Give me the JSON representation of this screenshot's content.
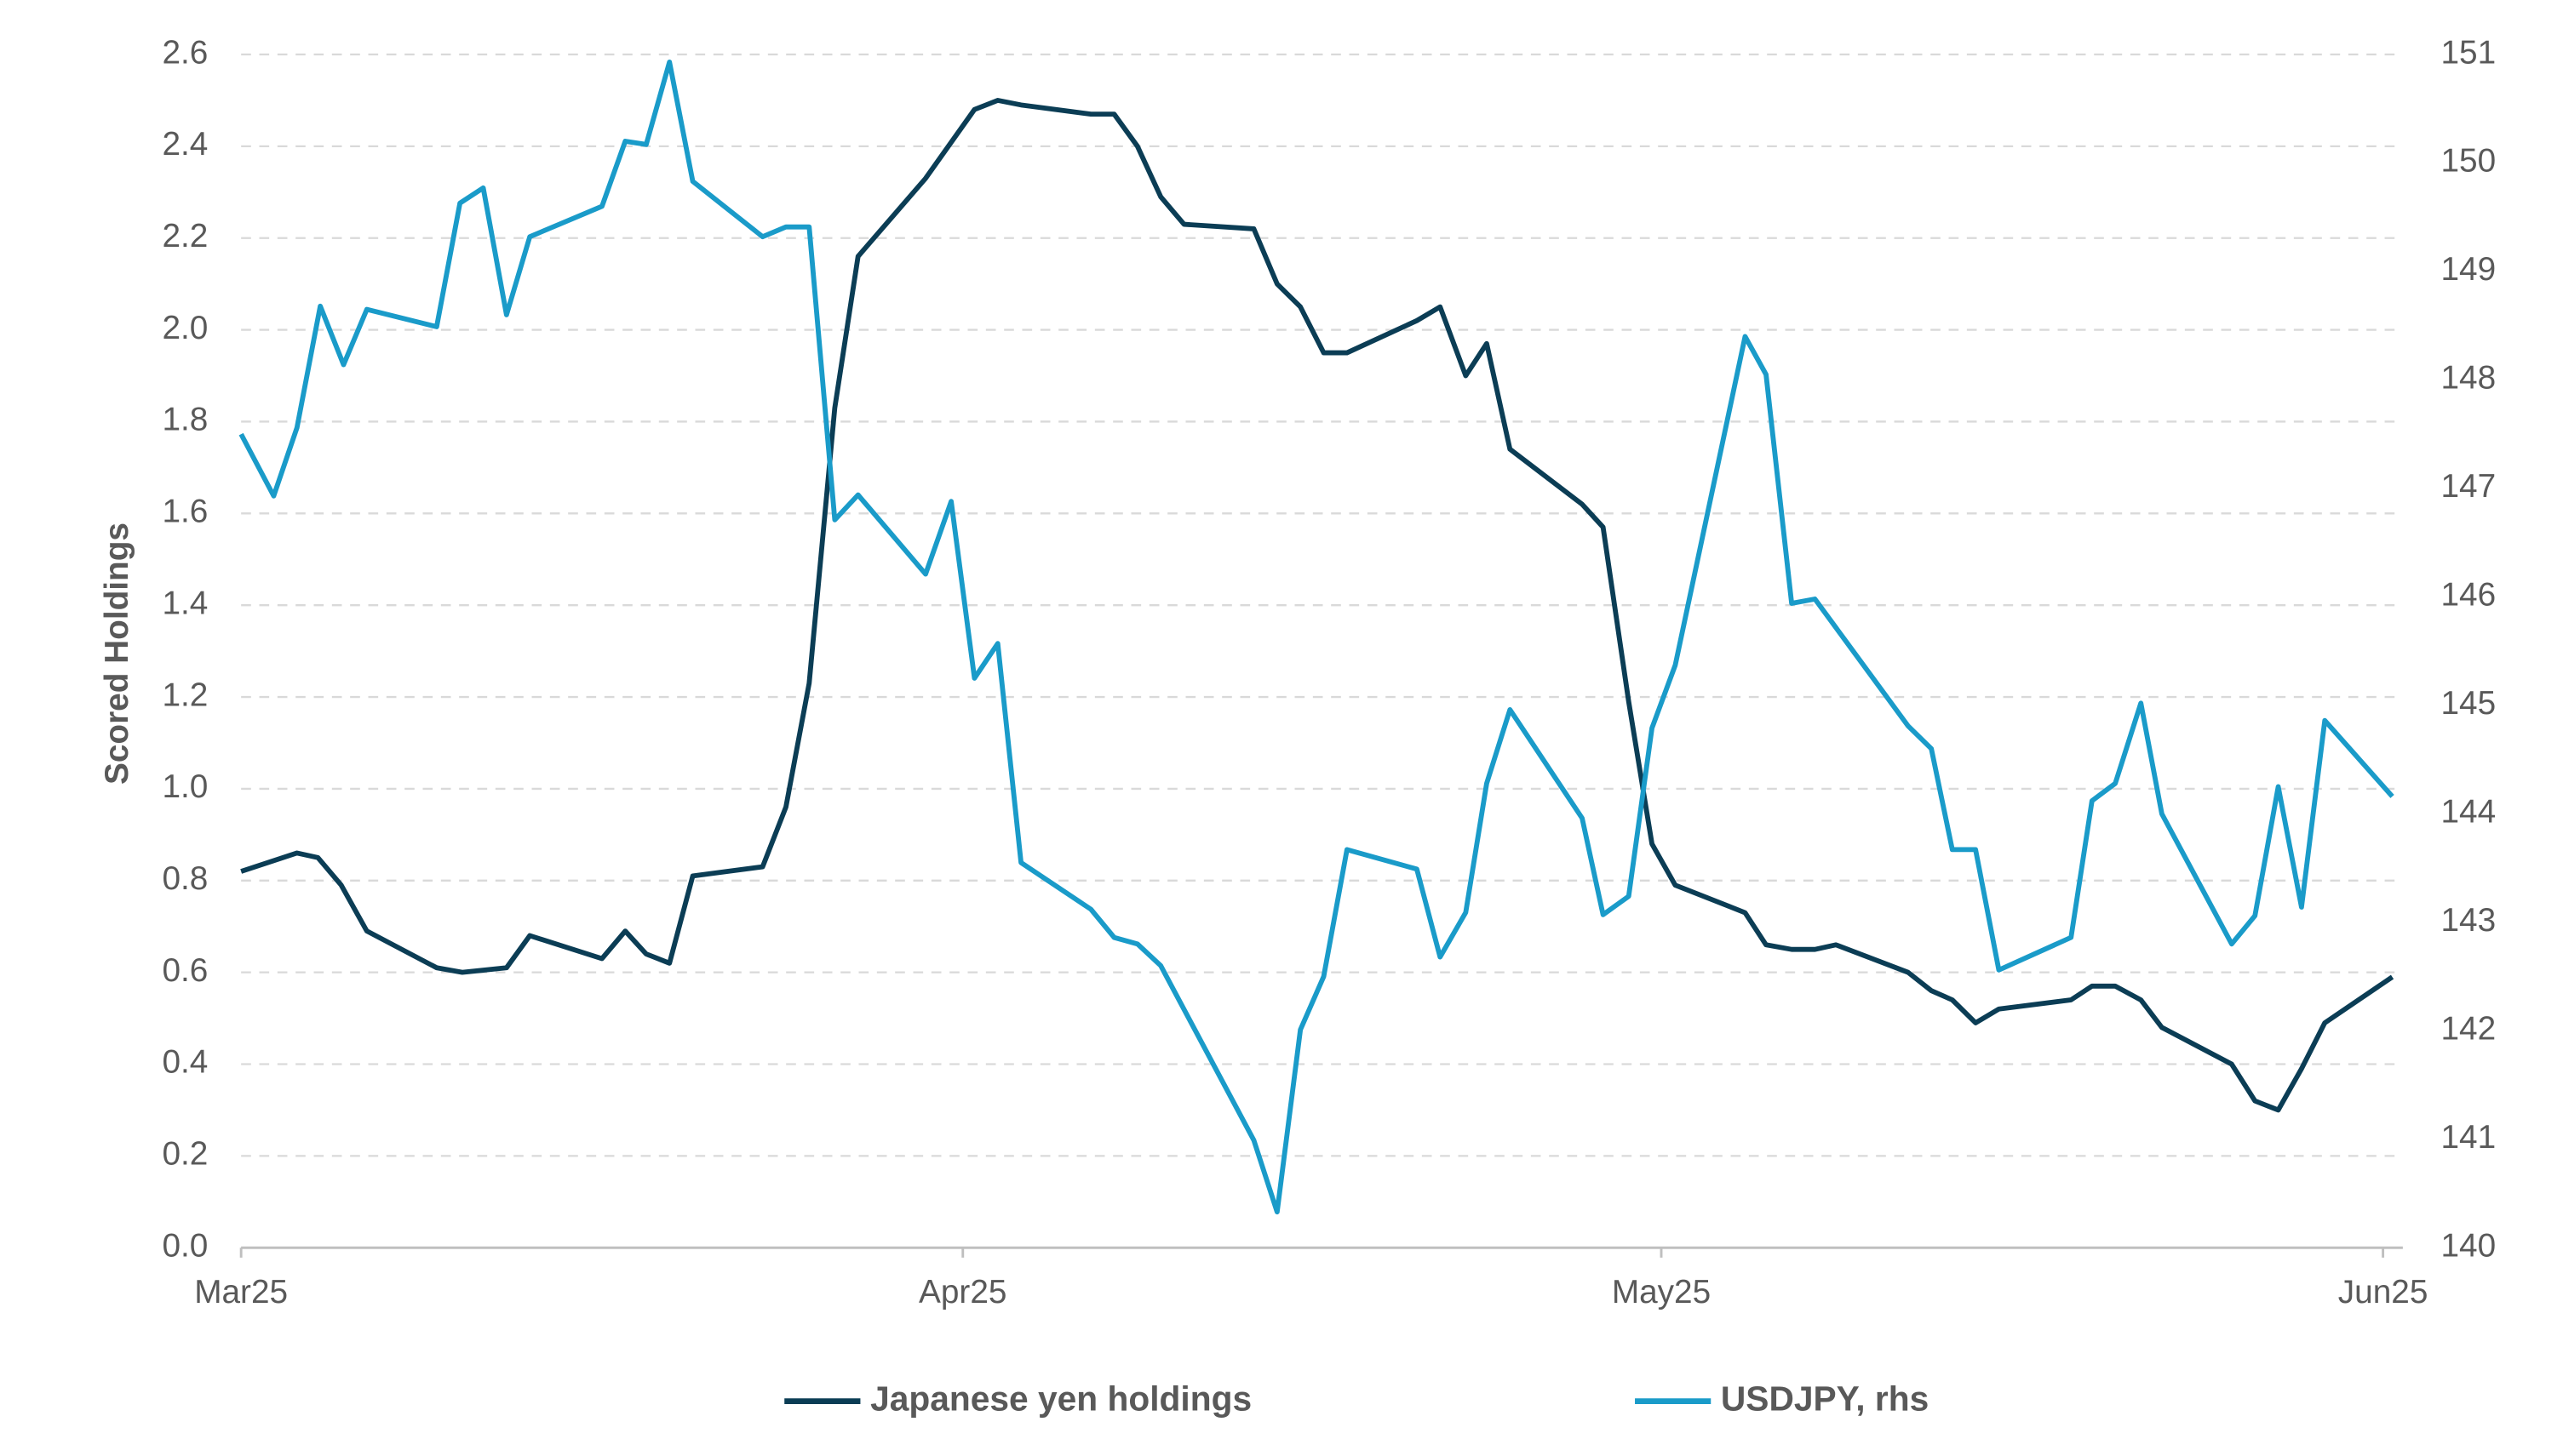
{
  "chart_data": {
    "type": "line",
    "y_label": "Scored Holdings",
    "xlim": [
      0,
      92
    ],
    "xticks": [
      {
        "value": 0,
        "label": "Mar25"
      },
      {
        "value": 31,
        "label": "Apr25"
      },
      {
        "value": 61,
        "label": "May25"
      },
      {
        "value": 92,
        "label": "Jun25"
      }
    ],
    "ylim": [
      0,
      2.6
    ],
    "yticks": [
      {
        "value": 0,
        "label": "0.0"
      },
      {
        "value": 0.2,
        "label": "0.2"
      },
      {
        "value": 0.4,
        "label": "0.4"
      },
      {
        "value": 0.6,
        "label": "0.6"
      },
      {
        "value": 0.8,
        "label": "0.8"
      },
      {
        "value": 1,
        "label": "1.0"
      },
      {
        "value": 1.2,
        "label": "1.2"
      },
      {
        "value": 1.4,
        "label": "1.4"
      },
      {
        "value": 1.6,
        "label": "1.6"
      },
      {
        "value": 1.8,
        "label": "1.8"
      },
      {
        "value": 2,
        "label": "2.0"
      },
      {
        "value": 2.2,
        "label": "2.2"
      },
      {
        "value": 2.4,
        "label": "2.4"
      },
      {
        "value": 2.6,
        "label": "2.6"
      }
    ],
    "y2lim": [
      140,
      151
    ],
    "y2ticks": [
      140,
      141,
      142,
      143,
      144,
      145,
      146,
      147,
      148,
      149,
      150,
      151
    ],
    "grid": true,
    "legend": "bottom",
    "series": [
      {
        "name": "Japanese yen holdings",
        "color": "#0b3d55",
        "x": [
          0,
          2.4,
          3.3,
          4.3,
          5.4,
          8.4,
          9.5,
          11.4,
          12.4,
          15.5,
          16.5,
          17.4,
          18.4,
          19.4,
          22.4,
          23.4,
          24.4,
          25.5,
          26.5,
          29.4,
          31.5,
          32.5,
          33.5,
          36.5,
          37.5,
          38.5,
          39.5,
          40.5,
          43.5,
          44.5,
          45.5,
          46.5,
          47.5,
          50.5,
          51.5,
          52.6,
          53.5,
          54.5,
          57.6,
          58.5,
          59.6,
          60.6,
          61.6,
          64.6,
          65.5,
          66.6,
          67.6,
          68.5,
          71.6,
          72.6,
          73.5,
          74.5,
          75.5,
          78.6,
          79.5,
          80.5,
          81.6,
          82.5,
          85.5,
          86.5,
          87.5,
          88.5,
          89.5,
          92.4
        ],
        "values": [
          0.82,
          0.86,
          0.85,
          0.79,
          0.69,
          0.61,
          0.6,
          0.61,
          0.68,
          0.63,
          0.69,
          0.64,
          0.62,
          0.81,
          0.83,
          0.96,
          1.23,
          1.83,
          2.16,
          2.33,
          2.48,
          2.5,
          2.49,
          2.47,
          2.47,
          2.4,
          2.29,
          2.23,
          2.22,
          2.1,
          2.05,
          1.95,
          1.95,
          2.02,
          2.05,
          1.9,
          1.97,
          1.74,
          1.62,
          1.57,
          1.19,
          0.88,
          0.79,
          0.73,
          0.66,
          0.65,
          0.65,
          0.66,
          0.6,
          0.56,
          0.54,
          0.49,
          0.52,
          0.54,
          0.57,
          0.57,
          0.54,
          0.48,
          0.4,
          0.32,
          0.3,
          0.39,
          0.49,
          0.59
        ]
      },
      {
        "name": "USDJPY, rhs",
        "color": "#1a9bc9",
        "axis": "y2",
        "x": [
          0,
          1.4,
          2.4,
          3.4,
          4.4,
          5.4,
          8.4,
          9.4,
          10.4,
          11.4,
          12.4,
          15.5,
          16.5,
          17.4,
          18.4,
          19.4,
          22.4,
          23.4,
          24.4,
          25.5,
          26.5,
          29.4,
          30.5,
          31.5,
          32.5,
          33.5,
          36.5,
          37.5,
          38.5,
          39.5,
          43.5,
          44.5,
          45.5,
          46.5,
          47.5,
          50.5,
          51.5,
          52.6,
          53.5,
          54.5,
          57.6,
          58.5,
          59.6,
          60.6,
          61.6,
          64.6,
          65.5,
          66.6,
          67.6,
          71.6,
          72.6,
          73.5,
          74.5,
          75.5,
          78.6,
          79.5,
          80.5,
          81.6,
          82.5,
          85.5,
          86.5,
          87.5,
          88.5,
          89.5,
          92.4
        ],
        "values": [
          147.5,
          146.93,
          147.56,
          148.68,
          148.14,
          148.65,
          148.49,
          149.63,
          149.77,
          148.6,
          149.32,
          149.6,
          150.2,
          150.17,
          150.93,
          149.83,
          149.32,
          149.41,
          149.41,
          146.71,
          146.94,
          146.21,
          146.88,
          145.25,
          145.57,
          143.55,
          143.12,
          142.86,
          142.8,
          142.6,
          140.99,
          140.33,
          142.01,
          142.5,
          143.67,
          143.49,
          142.68,
          143.09,
          144.28,
          144.96,
          143.96,
          143.07,
          143.24,
          144.79,
          145.37,
          148.4,
          148.05,
          145.94,
          145.98,
          144.81,
          144.6,
          143.67,
          143.67,
          142.56,
          142.86,
          144.12,
          144.28,
          145.02,
          144,
          142.8,
          143.06,
          144.25,
          143.14,
          144.86,
          144.16
        ]
      }
    ]
  }
}
